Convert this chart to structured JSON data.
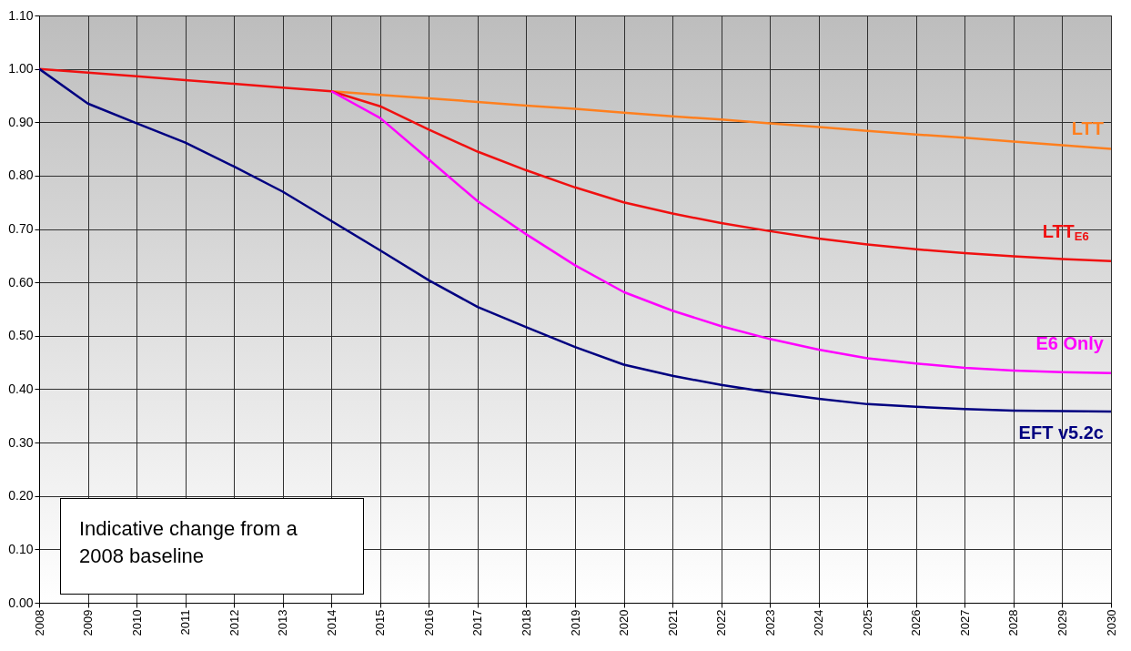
{
  "chart_data": {
    "type": "line",
    "x": [
      2008,
      2009,
      2010,
      2011,
      2012,
      2013,
      2014,
      2015,
      2016,
      2017,
      2018,
      2019,
      2020,
      2021,
      2022,
      2023,
      2024,
      2025,
      2026,
      2027,
      2028,
      2029,
      2030
    ],
    "series": [
      {
        "name": "LTT",
        "color": "#ff7f1e",
        "values": [
          null,
          null,
          null,
          null,
          null,
          null,
          0.958,
          0.951,
          0.945,
          0.938,
          0.931,
          0.925,
          0.918,
          0.911,
          0.905,
          0.898,
          0.891,
          0.884,
          0.877,
          0.871,
          0.864,
          0.857,
          0.85
        ]
      },
      {
        "name": "LTT$_{E6}$",
        "color": "#f01010",
        "values": [
          1.0,
          0.993,
          0.986,
          0.979,
          0.972,
          0.965,
          0.958,
          0.93,
          0.886,
          0.845,
          0.81,
          0.778,
          0.75,
          0.729,
          0.711,
          0.696,
          0.682,
          0.671,
          0.662,
          0.655,
          0.649,
          0.644,
          0.64
        ]
      },
      {
        "name": "E6 Only",
        "color": "#ff00ff",
        "values": [
          null,
          null,
          null,
          null,
          null,
          null,
          0.958,
          0.908,
          0.83,
          0.752,
          0.69,
          0.632,
          0.582,
          0.547,
          0.518,
          0.494,
          0.474,
          0.458,
          0.448,
          0.44,
          0.435,
          0.432,
          0.43
        ]
      },
      {
        "name": "EFT v5.2c",
        "color": "#000080",
        "values": [
          1.0,
          0.935,
          0.898,
          0.862,
          0.817,
          0.77,
          0.715,
          0.66,
          0.604,
          0.554,
          0.516,
          0.479,
          0.446,
          0.425,
          0.408,
          0.394,
          0.382,
          0.372,
          0.367,
          0.363,
          0.36,
          0.359,
          0.358
        ]
      }
    ],
    "xlim": [
      2008,
      2030
    ],
    "xticks": [
      2008,
      2009,
      2010,
      2011,
      2012,
      2013,
      2014,
      2015,
      2016,
      2017,
      2018,
      2019,
      2020,
      2021,
      2022,
      2023,
      2024,
      2025,
      2026,
      2027,
      2028,
      2029,
      2030
    ],
    "ylim": [
      0,
      1.1
    ],
    "yticks": [
      {
        "value": 0,
        "label": "0.00"
      },
      {
        "value": 0.1,
        "label": "0.10"
      },
      {
        "value": 0.2,
        "label": "0.20"
      },
      {
        "value": 0.3,
        "label": "0.30"
      },
      {
        "value": 0.4,
        "label": "0.40"
      },
      {
        "value": 0.5,
        "label": "0.50"
      },
      {
        "value": 0.6,
        "label": "0.60"
      },
      {
        "value": 0.7,
        "label": "0.70"
      },
      {
        "value": 0.8,
        "label": "0.80"
      },
      {
        "value": 0.9,
        "label": "0.90"
      },
      {
        "value": 1.0,
        "label": "1.00"
      },
      {
        "value": 1.1,
        "label": "1.10"
      }
    ],
    "grid": true,
    "legend": false,
    "marker": "none",
    "line_style": "solid",
    "annotations": [
      "Indicative change from a 2008 baseline"
    ]
  }
}
